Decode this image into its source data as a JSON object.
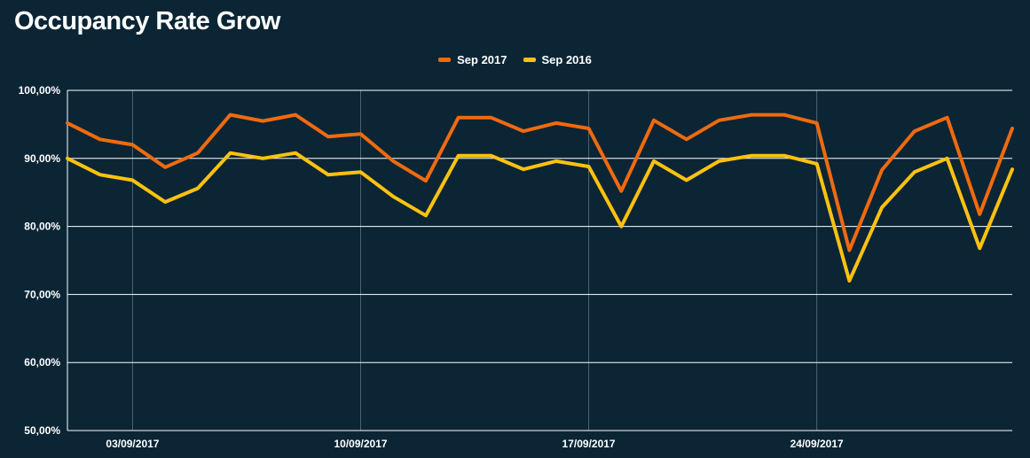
{
  "title": "Occupancy Rate Grow",
  "colors": {
    "background": "#0b2535",
    "sep2017": "#f06a0f",
    "sep2016": "#ffc20e",
    "grid": "#ffffff",
    "vgrid": "#4d6473"
  },
  "chart_data": {
    "type": "line",
    "title": "Occupancy Rate Grow",
    "xlabel": "",
    "ylabel": "",
    "x": [
      "01/09/2017",
      "02/09/2017",
      "03/09/2017",
      "04/09/2017",
      "05/09/2017",
      "06/09/2017",
      "07/09/2017",
      "08/09/2017",
      "09/09/2017",
      "10/09/2017",
      "11/09/2017",
      "12/09/2017",
      "13/09/2017",
      "14/09/2017",
      "15/09/2017",
      "16/09/2017",
      "17/09/2017",
      "18/09/2017",
      "19/09/2017",
      "20/09/2017",
      "21/09/2017",
      "22/09/2017",
      "23/09/2017",
      "24/09/2017",
      "25/09/2017",
      "26/09/2017",
      "27/09/2017",
      "28/09/2017",
      "29/09/2017",
      "30/09/2017"
    ],
    "x_ticks": [
      "03/09/2017",
      "10/09/2017",
      "17/09/2017",
      "24/09/2017"
    ],
    "ylim": [
      50,
      100
    ],
    "y_ticks": [
      "50,00%",
      "60,00%",
      "70,00%",
      "80,00%",
      "90,00%",
      "100,00%"
    ],
    "legend": "top-center",
    "series": [
      {
        "name": "Sep 2017",
        "color": "#f06a0f",
        "values": [
          95.2,
          92.8,
          92.0,
          88.7,
          90.8,
          96.4,
          95.5,
          96.4,
          93.2,
          93.6,
          89.6,
          86.7,
          96.0,
          96.0,
          94.0,
          95.2,
          94.4,
          85.2,
          95.6,
          92.8,
          95.6,
          96.4,
          96.4,
          95.2,
          76.5,
          88.3,
          94.0,
          96.0,
          81.8,
          94.4
        ]
      },
      {
        "name": "Sep 2016",
        "color": "#ffc20e",
        "values": [
          90.0,
          87.6,
          86.8,
          83.6,
          85.6,
          90.8,
          90.0,
          90.8,
          87.6,
          88.0,
          84.4,
          81.6,
          90.4,
          90.4,
          88.4,
          89.6,
          88.8,
          80.0,
          89.6,
          86.8,
          89.6,
          90.4,
          90.4,
          89.2,
          72.0,
          82.8,
          88.0,
          90.0,
          76.8,
          88.4
        ]
      }
    ]
  }
}
